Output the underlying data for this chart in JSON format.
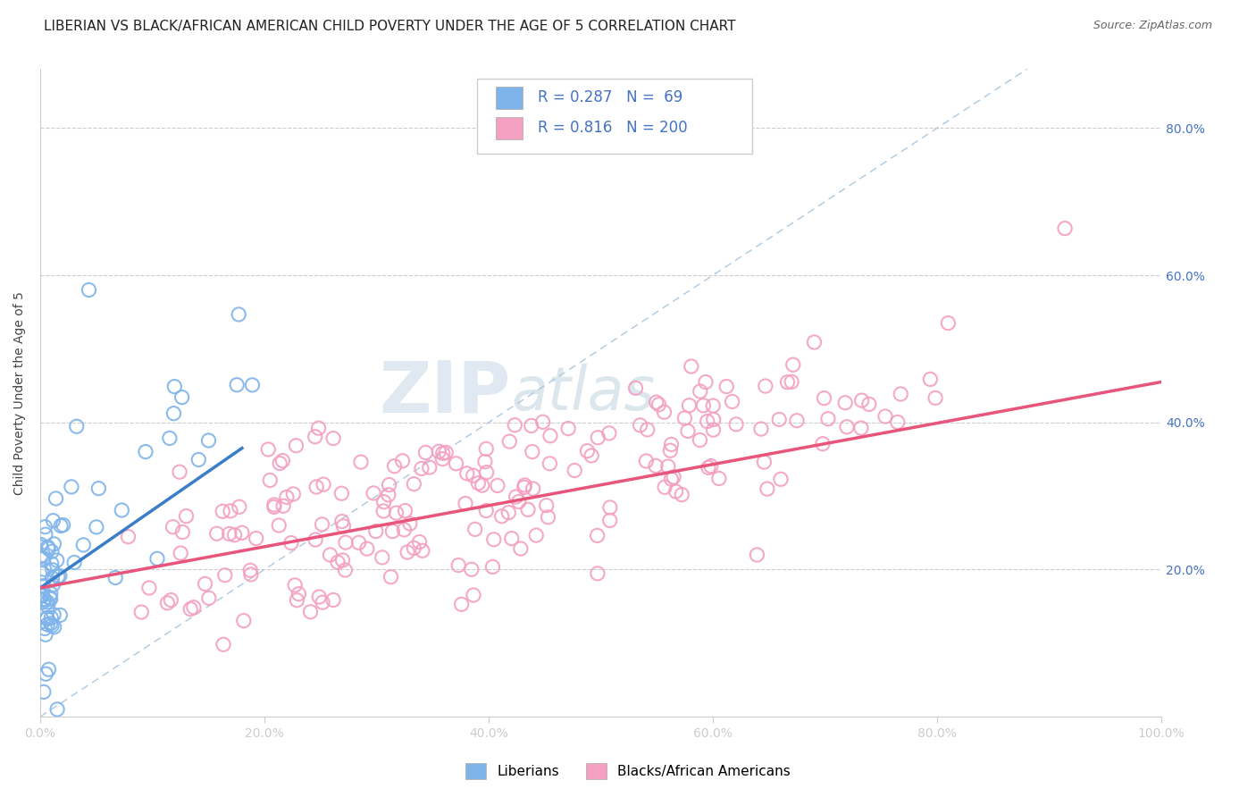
{
  "title": "LIBERIAN VS BLACK/AFRICAN AMERICAN CHILD POVERTY UNDER THE AGE OF 5 CORRELATION CHART",
  "source": "Source: ZipAtlas.com",
  "ylabel": "Child Poverty Under the Age of 5",
  "xlim": [
    0,
    1.0
  ],
  "ylim": [
    0,
    0.88
  ],
  "x_tick_labels": [
    "0.0%",
    "20.0%",
    "40.0%",
    "60.0%",
    "80.0%",
    "100.0%"
  ],
  "x_tick_vals": [
    0.0,
    0.2,
    0.4,
    0.6,
    0.8,
    1.0
  ],
  "y_tick_labels": [
    "20.0%",
    "40.0%",
    "60.0%",
    "80.0%"
  ],
  "y_tick_vals": [
    0.2,
    0.4,
    0.6,
    0.8
  ],
  "liberian_R": "0.287",
  "liberian_N": "69",
  "black_R": "0.816",
  "black_N": "200",
  "liberian_color": "#7EB4EA",
  "black_color": "#F4A0C0",
  "liberian_line_color": "#3A7DC9",
  "black_line_color": "#E8547A",
  "diagonal_color": "#B0C8DE",
  "legend_liberian_label": "Liberians",
  "legend_black_label": "Blacks/African Americans",
  "watermark_zip": "ZIP",
  "watermark_atlas": "atlas",
  "background_color": "#FFFFFF",
  "title_fontsize": 11,
  "label_fontsize": 10,
  "tick_color": "#4472C4"
}
